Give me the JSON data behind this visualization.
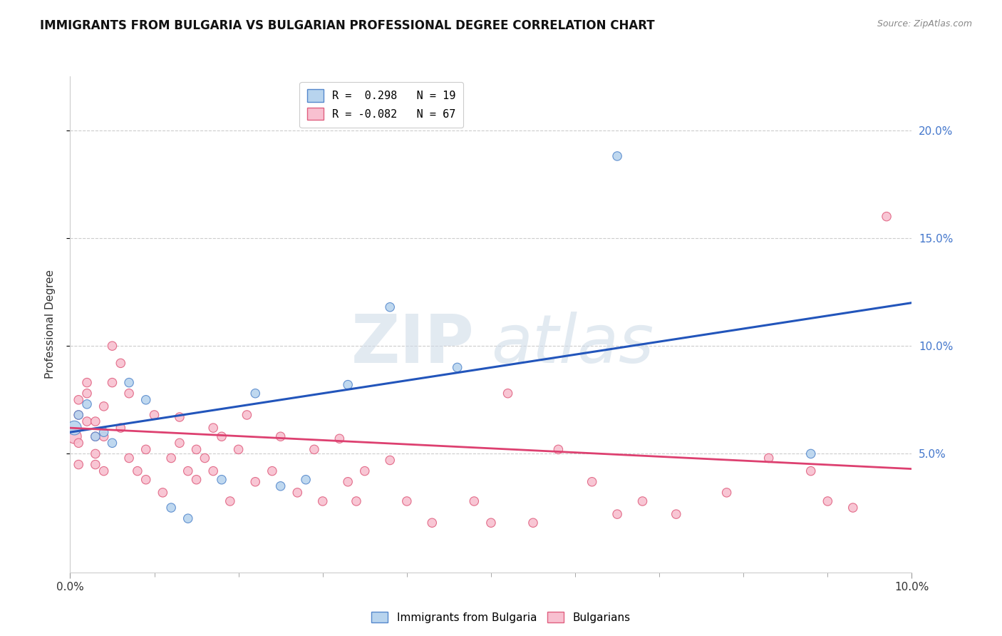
{
  "title": "IMMIGRANTS FROM BULGARIA VS BULGARIAN PROFESSIONAL DEGREE CORRELATION CHART",
  "source": "Source: ZipAtlas.com",
  "ylabel": "Professional Degree",
  "xlim": [
    0.0,
    0.1
  ],
  "ylim": [
    -0.005,
    0.225
  ],
  "ytick_vals": [
    0.05,
    0.1,
    0.15,
    0.2
  ],
  "ytick_labels": [
    "5.0%",
    "10.0%",
    "15.0%",
    "20.0%"
  ],
  "xtick_vals": [
    0.0,
    0.1
  ],
  "xtick_labels": [
    "0.0%",
    "10.0%"
  ],
  "legend_r_blue": "R =  0.298",
  "legend_n_blue": "N = 19",
  "legend_r_pink": "R = -0.082",
  "legend_n_pink": "N = 67",
  "blue_scatter_x": [
    0.0005,
    0.001,
    0.002,
    0.003,
    0.004,
    0.005,
    0.007,
    0.009,
    0.012,
    0.014,
    0.018,
    0.022,
    0.025,
    0.028,
    0.033,
    0.038,
    0.046,
    0.065,
    0.088
  ],
  "blue_scatter_y": [
    0.062,
    0.068,
    0.073,
    0.058,
    0.06,
    0.055,
    0.083,
    0.075,
    0.025,
    0.02,
    0.038,
    0.078,
    0.035,
    0.038,
    0.082,
    0.118,
    0.09,
    0.188,
    0.05
  ],
  "blue_marker_sizes": [
    200,
    80,
    80,
    80,
    80,
    80,
    80,
    80,
    80,
    80,
    80,
    80,
    80,
    80,
    80,
    80,
    80,
    80,
    80
  ],
  "pink_scatter_x": [
    0.0005,
    0.001,
    0.001,
    0.001,
    0.001,
    0.002,
    0.002,
    0.002,
    0.003,
    0.003,
    0.003,
    0.003,
    0.004,
    0.004,
    0.004,
    0.005,
    0.005,
    0.006,
    0.006,
    0.007,
    0.007,
    0.008,
    0.009,
    0.009,
    0.01,
    0.011,
    0.012,
    0.013,
    0.013,
    0.014,
    0.015,
    0.015,
    0.016,
    0.017,
    0.017,
    0.018,
    0.019,
    0.02,
    0.021,
    0.022,
    0.024,
    0.025,
    0.027,
    0.029,
    0.03,
    0.032,
    0.033,
    0.034,
    0.035,
    0.038,
    0.04,
    0.043,
    0.048,
    0.05,
    0.052,
    0.055,
    0.058,
    0.062,
    0.065,
    0.068,
    0.072,
    0.078,
    0.083,
    0.088,
    0.09,
    0.093,
    0.097
  ],
  "pink_scatter_y": [
    0.058,
    0.068,
    0.075,
    0.055,
    0.045,
    0.065,
    0.078,
    0.083,
    0.05,
    0.058,
    0.065,
    0.045,
    0.042,
    0.058,
    0.072,
    0.1,
    0.083,
    0.092,
    0.062,
    0.078,
    0.048,
    0.042,
    0.038,
    0.052,
    0.068,
    0.032,
    0.048,
    0.055,
    0.067,
    0.042,
    0.038,
    0.052,
    0.048,
    0.042,
    0.062,
    0.058,
    0.028,
    0.052,
    0.068,
    0.037,
    0.042,
    0.058,
    0.032,
    0.052,
    0.028,
    0.057,
    0.037,
    0.028,
    0.042,
    0.047,
    0.028,
    0.018,
    0.028,
    0.018,
    0.078,
    0.018,
    0.052,
    0.037,
    0.022,
    0.028,
    0.022,
    0.032,
    0.048,
    0.042,
    0.028,
    0.025,
    0.16
  ],
  "pink_marker_sizes": [
    200,
    80,
    80,
    80,
    80,
    80,
    80,
    80,
    80,
    80,
    80,
    80,
    80,
    80,
    80,
    80,
    80,
    80,
    80,
    80,
    80,
    80,
    80,
    80,
    80,
    80,
    80,
    80,
    80,
    80,
    80,
    80,
    80,
    80,
    80,
    80,
    80,
    80,
    80,
    80,
    80,
    80,
    80,
    80,
    80,
    80,
    80,
    80,
    80,
    80,
    80,
    80,
    80,
    80,
    80,
    80,
    80,
    80,
    80,
    80,
    80,
    80,
    80,
    80,
    80,
    80,
    80
  ],
  "blue_line_x": [
    0.0,
    0.1
  ],
  "blue_line_y": [
    0.06,
    0.12
  ],
  "pink_line_x": [
    0.0,
    0.1
  ],
  "pink_line_y": [
    0.062,
    0.043
  ],
  "blue_color": "#b8d4ee",
  "blue_edge_color": "#5588cc",
  "pink_color": "#f8c0d0",
  "pink_edge_color": "#e06080",
  "blue_line_color": "#2255bb",
  "pink_line_color": "#dd4070",
  "marker_size": 75,
  "background_color": "#ffffff",
  "watermark_zip": "ZIP",
  "watermark_atlas": "atlas",
  "grid_color": "#cccccc",
  "ytick_color": "#4477cc",
  "bottom_legend_label1": "Immigrants from Bulgaria",
  "bottom_legend_label2": "Bulgarians"
}
